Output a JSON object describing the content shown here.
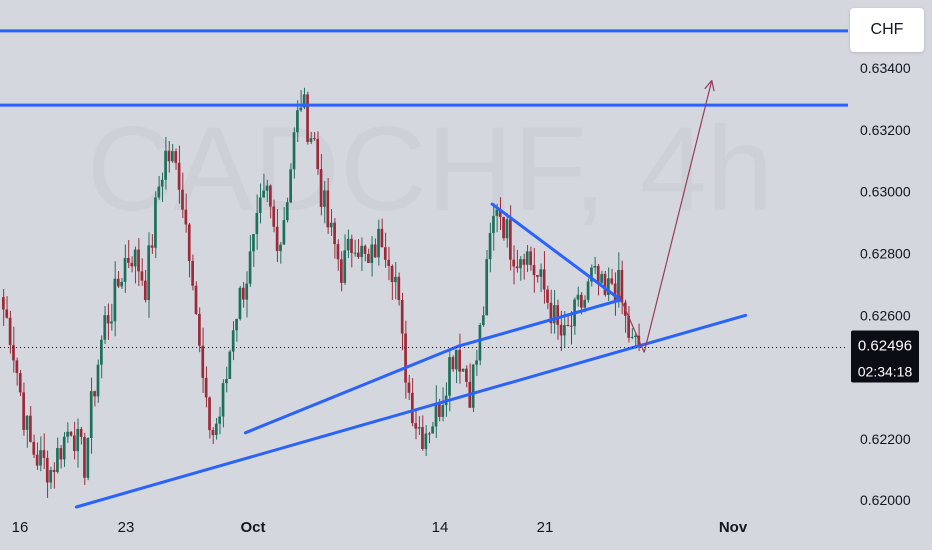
{
  "watermark": {
    "symbol": "CADCHF, 4h"
  },
  "currency_button": {
    "label": "CHF"
  },
  "price_label": {
    "price": "0.62496",
    "countdown": "02:34:18"
  },
  "colors": {
    "background": "#d5d7de",
    "up_candle": "#1e6f5c",
    "down_candle": "#9c2b3a",
    "trendline": "#2962ff",
    "projection": "#9c3a5a",
    "axis_text": "#131722"
  },
  "chart_data": {
    "type": "candlestick",
    "title": "",
    "xlabel": "",
    "ylabel": "",
    "timeframe": "4h",
    "ylim": [
      0.6198,
      0.6362
    ],
    "y_ticks": [
      "0.63400",
      "0.63200",
      "0.63000",
      "0.62800",
      "0.62600",
      "0.62200",
      "0.62000"
    ],
    "x_ticks": [
      "16",
      "23",
      "Oct",
      "14",
      "21",
      "Nov"
    ],
    "last_price": 0.62496,
    "price_path": [
      [
        0,
        0.6262
      ],
      [
        2,
        0.6255
      ],
      [
        4,
        0.6242
      ],
      [
        6,
        0.6228
      ],
      [
        8,
        0.6218
      ],
      [
        10,
        0.6214
      ],
      [
        12,
        0.6212
      ],
      [
        14,
        0.621
      ],
      [
        16,
        0.6215
      ],
      [
        18,
        0.622
      ],
      [
        20,
        0.6225
      ],
      [
        22,
        0.6218
      ],
      [
        24,
        0.6212
      ],
      [
        26,
        0.623
      ],
      [
        28,
        0.6245
      ],
      [
        30,
        0.6258
      ],
      [
        32,
        0.6262
      ],
      [
        34,
        0.627
      ],
      [
        36,
        0.6278
      ],
      [
        38,
        0.628
      ],
      [
        40,
        0.6276
      ],
      [
        42,
        0.627
      ],
      [
        44,
        0.6285
      ],
      [
        46,
        0.6302
      ],
      [
        48,
        0.6312
      ],
      [
        50,
        0.631
      ],
      [
        52,
        0.6305
      ],
      [
        54,
        0.629
      ],
      [
        56,
        0.6275
      ],
      [
        58,
        0.6248
      ],
      [
        60,
        0.6228
      ],
      [
        62,
        0.6222
      ],
      [
        64,
        0.6228
      ],
      [
        66,
        0.624
      ],
      [
        68,
        0.6258
      ],
      [
        70,
        0.6266
      ],
      [
        72,
        0.6273
      ],
      [
        74,
        0.6282
      ],
      [
        76,
        0.6293
      ],
      [
        78,
        0.6299
      ],
      [
        80,
        0.6288
      ],
      [
        82,
        0.6285
      ],
      [
        84,
        0.63
      ],
      [
        86,
        0.6317
      ],
      [
        88,
        0.633
      ],
      [
        90,
        0.6322
      ],
      [
        92,
        0.6316
      ],
      [
        94,
        0.63
      ],
      [
        96,
        0.6289
      ],
      [
        98,
        0.6282
      ],
      [
        100,
        0.6275
      ],
      [
        102,
        0.628
      ],
      [
        104,
        0.6286
      ],
      [
        106,
        0.628
      ],
      [
        108,
        0.6275
      ],
      [
        110,
        0.6282
      ],
      [
        112,
        0.6286
      ],
      [
        114,
        0.6281
      ],
      [
        116,
        0.6272
      ],
      [
        118,
        0.625
      ],
      [
        120,
        0.6235
      ],
      [
        122,
        0.6226
      ],
      [
        124,
        0.6222
      ],
      [
        126,
        0.6225
      ],
      [
        128,
        0.6228
      ],
      [
        130,
        0.6235
      ],
      [
        132,
        0.6245
      ],
      [
        134,
        0.625
      ],
      [
        136,
        0.6243
      ],
      [
        138,
        0.6236
      ],
      [
        140,
        0.6246
      ],
      [
        142,
        0.6262
      ],
      [
        144,
        0.6284
      ],
      [
        146,
        0.6297
      ],
      [
        148,
        0.629
      ],
      [
        150,
        0.6283
      ],
      [
        152,
        0.6279
      ],
      [
        154,
        0.6282
      ],
      [
        156,
        0.6277
      ],
      [
        158,
        0.6272
      ],
      [
        160,
        0.6268
      ],
      [
        162,
        0.6262
      ],
      [
        164,
        0.6255
      ],
      [
        166,
        0.6252
      ],
      [
        168,
        0.6257
      ],
      [
        170,
        0.6262
      ],
      [
        172,
        0.6265
      ],
      [
        174,
        0.6272
      ],
      [
        176,
        0.627
      ],
      [
        178,
        0.6265
      ],
      [
        180,
        0.6271
      ],
      [
        182,
        0.6269
      ],
      [
        184,
        0.6258
      ],
      [
        186,
        0.625
      ],
      [
        188,
        0.625
      ]
    ],
    "annotations": [
      {
        "kind": "horizontal-line",
        "price": 0.6352
      },
      {
        "kind": "horizontal-line",
        "price": 0.6328
      },
      {
        "kind": "rising-trendline",
        "from": [
          22,
          0.6198
        ],
        "to": [
          220,
          0.626
        ]
      },
      {
        "kind": "triangle-upper",
        "from": [
          145,
          0.6296
        ],
        "to": [
          183,
          0.6265
        ]
      },
      {
        "kind": "triangle-lower",
        "from": [
          135,
          0.625
        ],
        "to": [
          183,
          0.6265
        ]
      },
      {
        "kind": "triangle-lower-base",
        "from": [
          72,
          0.6222
        ],
        "to": [
          135,
          0.625
        ]
      },
      {
        "kind": "projection-down",
        "from": [
          182,
          0.6268
        ],
        "to": [
          190,
          0.6248
        ]
      },
      {
        "kind": "projection-up",
        "from": [
          190,
          0.6248
        ],
        "to": [
          210,
          0.6336
        ]
      }
    ]
  }
}
